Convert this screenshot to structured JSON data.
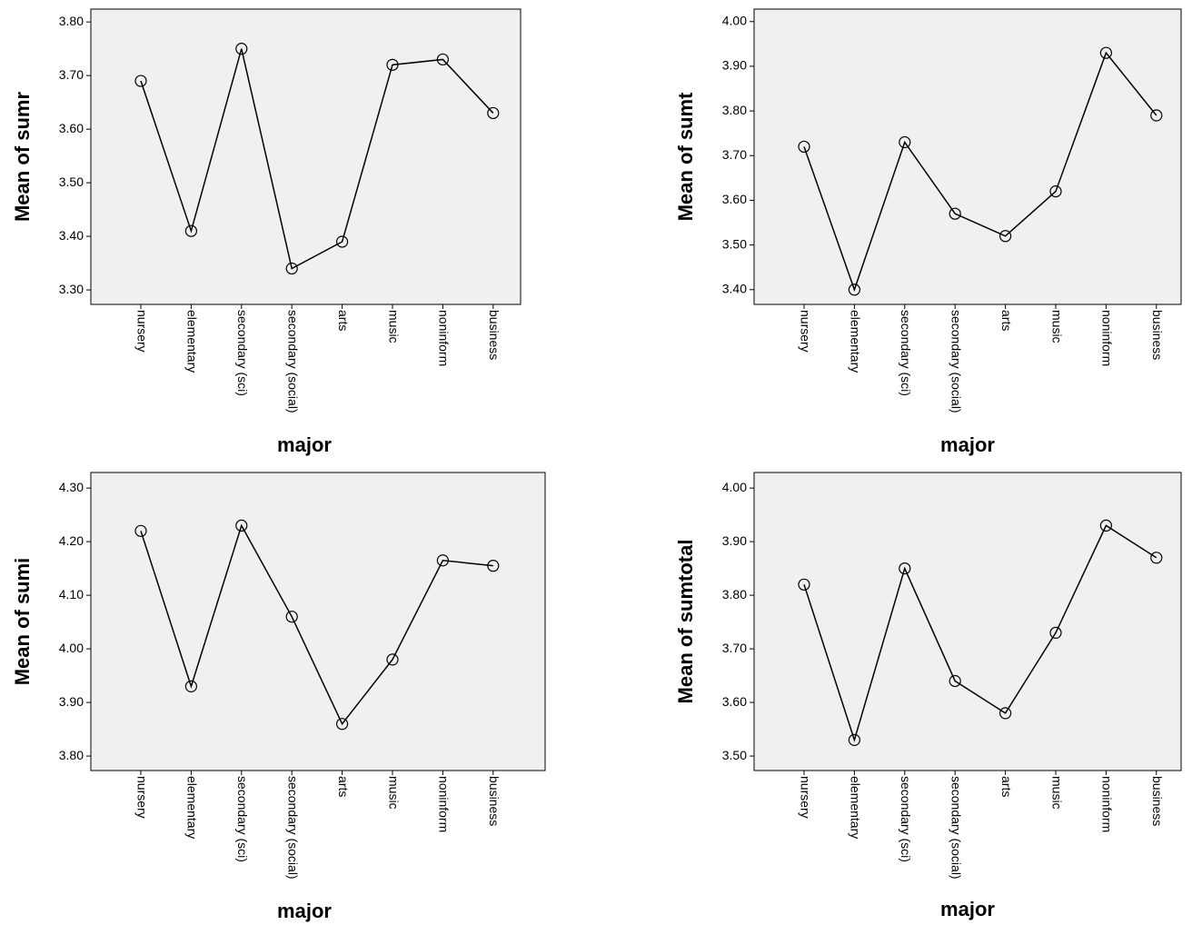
{
  "chart_data": [
    {
      "type": "line",
      "y_label": "Mean of sumr",
      "x_label": "major",
      "categories": [
        "nursery",
        "elementary",
        "secondary (sci)",
        "secondary (social)",
        "arts",
        "music",
        "noninform",
        "business"
      ],
      "values": [
        3.69,
        3.41,
        3.75,
        3.34,
        3.39,
        3.72,
        3.73,
        3.63
      ],
      "color": "#000000",
      "ylim": [
        3.273,
        3.824
      ],
      "yticks": [
        {
          "value": 3.3,
          "label": "3.30"
        },
        {
          "value": 3.4,
          "label": "3.40"
        },
        {
          "value": 3.5,
          "label": "3.50"
        },
        {
          "value": 3.6,
          "label": "3.60"
        },
        {
          "value": 3.7,
          "label": "3.70"
        },
        {
          "value": 3.8,
          "label": "3.80"
        }
      ]
    },
    {
      "type": "line",
      "y_label": "Mean of sumt",
      "x_label": "major",
      "categories": [
        "nursery",
        "elementary",
        "secondary (sci)",
        "secondary (social)",
        "arts",
        "music",
        "noninform",
        "business"
      ],
      "values": [
        3.72,
        3.4,
        3.73,
        3.57,
        3.52,
        3.62,
        3.93,
        3.79
      ],
      "color": "#000000",
      "ylim": [
        3.367,
        4.028
      ],
      "yticks": [
        {
          "value": 3.4,
          "label": "3.40"
        },
        {
          "value": 3.5,
          "label": "3.50"
        },
        {
          "value": 3.6,
          "label": "3.60"
        },
        {
          "value": 3.7,
          "label": "3.70"
        },
        {
          "value": 3.8,
          "label": "3.80"
        },
        {
          "value": 3.9,
          "label": "3.90"
        },
        {
          "value": 4.0,
          "label": "4.00"
        }
      ]
    },
    {
      "type": "line",
      "y_label": "Mean of sumi",
      "x_label": "major",
      "categories": [
        "nursery",
        "elementary",
        "secondary (sci)",
        "secondary (social)",
        "arts",
        "music",
        "noninform",
        "business"
      ],
      "values": [
        4.22,
        3.93,
        4.23,
        4.06,
        3.86,
        3.98,
        4.165,
        4.155
      ],
      "color": "#000000",
      "ylim": [
        3.773,
        4.329
      ],
      "yticks": [
        {
          "value": 3.8,
          "label": "3.80"
        },
        {
          "value": 3.9,
          "label": "3.90"
        },
        {
          "value": 4.0,
          "label": "4.00"
        },
        {
          "value": 4.1,
          "label": "4.10"
        },
        {
          "value": 4.2,
          "label": "4.20"
        },
        {
          "value": 4.3,
          "label": "4.30"
        }
      ]
    },
    {
      "type": "line",
      "y_label": "Mean of sumtotal",
      "x_label": "major",
      "categories": [
        "nursery",
        "elementary",
        "secondary (sci)",
        "secondary (social)",
        "arts",
        "music",
        "noninform",
        "business"
      ],
      "values": [
        3.82,
        3.53,
        3.85,
        3.64,
        3.58,
        3.73,
        3.93,
        3.87
      ],
      "color": "#000000",
      "ylim": [
        3.473,
        4.029
      ],
      "yticks": [
        {
          "value": 3.5,
          "label": "3.50"
        },
        {
          "value": 3.6,
          "label": "3.60"
        },
        {
          "value": 3.7,
          "label": "3.70"
        },
        {
          "value": 3.8,
          "label": "3.80"
        },
        {
          "value": 3.9,
          "label": "3.90"
        },
        {
          "value": 4.0,
          "label": "4.00"
        }
      ]
    }
  ]
}
